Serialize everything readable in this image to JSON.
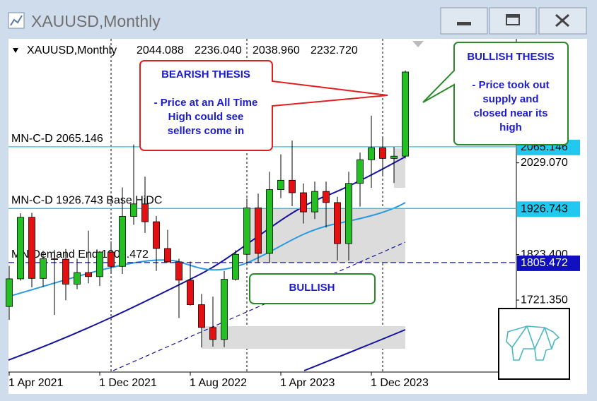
{
  "window": {
    "title": "XAUUSD,Monthly"
  },
  "chart_data": {
    "type": "candlestick",
    "header": {
      "symbol": "XAUUSD,Monthly",
      "ohlc": [
        "2044.088",
        "2236.040",
        "2038.960",
        "2232.720"
      ]
    },
    "categories": [
      "1 Apr 2021",
      null,
      null,
      null,
      null,
      null,
      null,
      null,
      "1 Dec 2021",
      null,
      null,
      null,
      null,
      null,
      null,
      null,
      "1 Aug 2022",
      null,
      null,
      null,
      null,
      null,
      null,
      null,
      "1 Apr 2023",
      null,
      null,
      null,
      null,
      null,
      null,
      null,
      "1 Dec 2023",
      null,
      null,
      null
    ],
    "open": [
      1707,
      1769,
      1907,
      1770,
      1814,
      1813,
      1757,
      1783,
      1774,
      1829,
      1797,
      1909,
      1937,
      1897,
      1837,
      1807,
      1766,
      1711,
      1660,
      1633,
      1768,
      1824,
      1928,
      1826,
      1969,
      1990,
      1962,
      1919,
      1965,
      1940,
      1848,
      1983,
      2036,
      2063,
      2039,
      2044.088
    ],
    "high": [
      1798,
      1916,
      1917,
      1832,
      1834,
      1836,
      1814,
      1877,
      1831,
      1853,
      1974,
      2070,
      1998,
      1910,
      1879,
      1814,
      1808,
      1735,
      1729,
      1787,
      1833,
      1949,
      1960,
      2009,
      2048,
      2079,
      1983,
      1987,
      1987,
      1953,
      2009,
      2052,
      2135,
      2088,
      2065,
      2236.04
    ],
    "low": [
      1677,
      1765,
      1750,
      1751,
      1688,
      1721,
      1746,
      1759,
      1753,
      1780,
      1780,
      1890,
      1872,
      1787,
      1805,
      1681,
      1709,
      1615,
      1617,
      1616,
      1765,
      1804,
      1805,
      1804,
      1950,
      1932,
      1893,
      1903,
      1884,
      1810,
      1810,
      1931,
      1973,
      2002,
      1984,
      2038.96
    ],
    "close": [
      1769,
      1907,
      1770,
      1814,
      1813,
      1757,
      1783,
      1774,
      1829,
      1797,
      1909,
      1937,
      1897,
      1837,
      1807,
      1766,
      1711,
      1660,
      1633,
      1768,
      1824,
      1928,
      1826,
      1969,
      1990,
      1962,
      1919,
      1965,
      1940,
      1848,
      1983,
      2036,
      2063,
      2039,
      2044,
      2232.72
    ],
    "up_color": "#22c022",
    "down_color": "#e61010",
    "ylim": [
      1560,
      2296
    ],
    "yticks": [
      {
        "value": 1721.35,
        "label": "1721.350"
      },
      {
        "value": 1823.4,
        "label": "1823.400"
      },
      {
        "value": 2029.07,
        "label": "2029.070"
      }
    ],
    "levels": [
      {
        "name": "MN-C-D 2065.146",
        "value": 2065.146,
        "color": "#22c8f0",
        "text_color": "#000000",
        "dashed": false
      },
      {
        "name": "MN-C-D 1926.743 Base HiDC",
        "value": 1926.743,
        "color": "#22c8f0",
        "text_color": "#000000",
        "dashed": false
      },
      {
        "name": "MN Demand End 1805.472",
        "value": 1805.472,
        "color": "#1010c0",
        "text_color": "#ffffff",
        "dashed": true
      }
    ],
    "annotations": {
      "bearish": [
        "BEARISH THESIS",
        "- Price at an All Time",
        "High could see",
        "sellers come in"
      ],
      "bullish_thesis": [
        "BULLISH THESIS",
        "- Price took out",
        "supply and",
        "closed near its",
        "high"
      ],
      "bullish": "BULLISH"
    }
  }
}
